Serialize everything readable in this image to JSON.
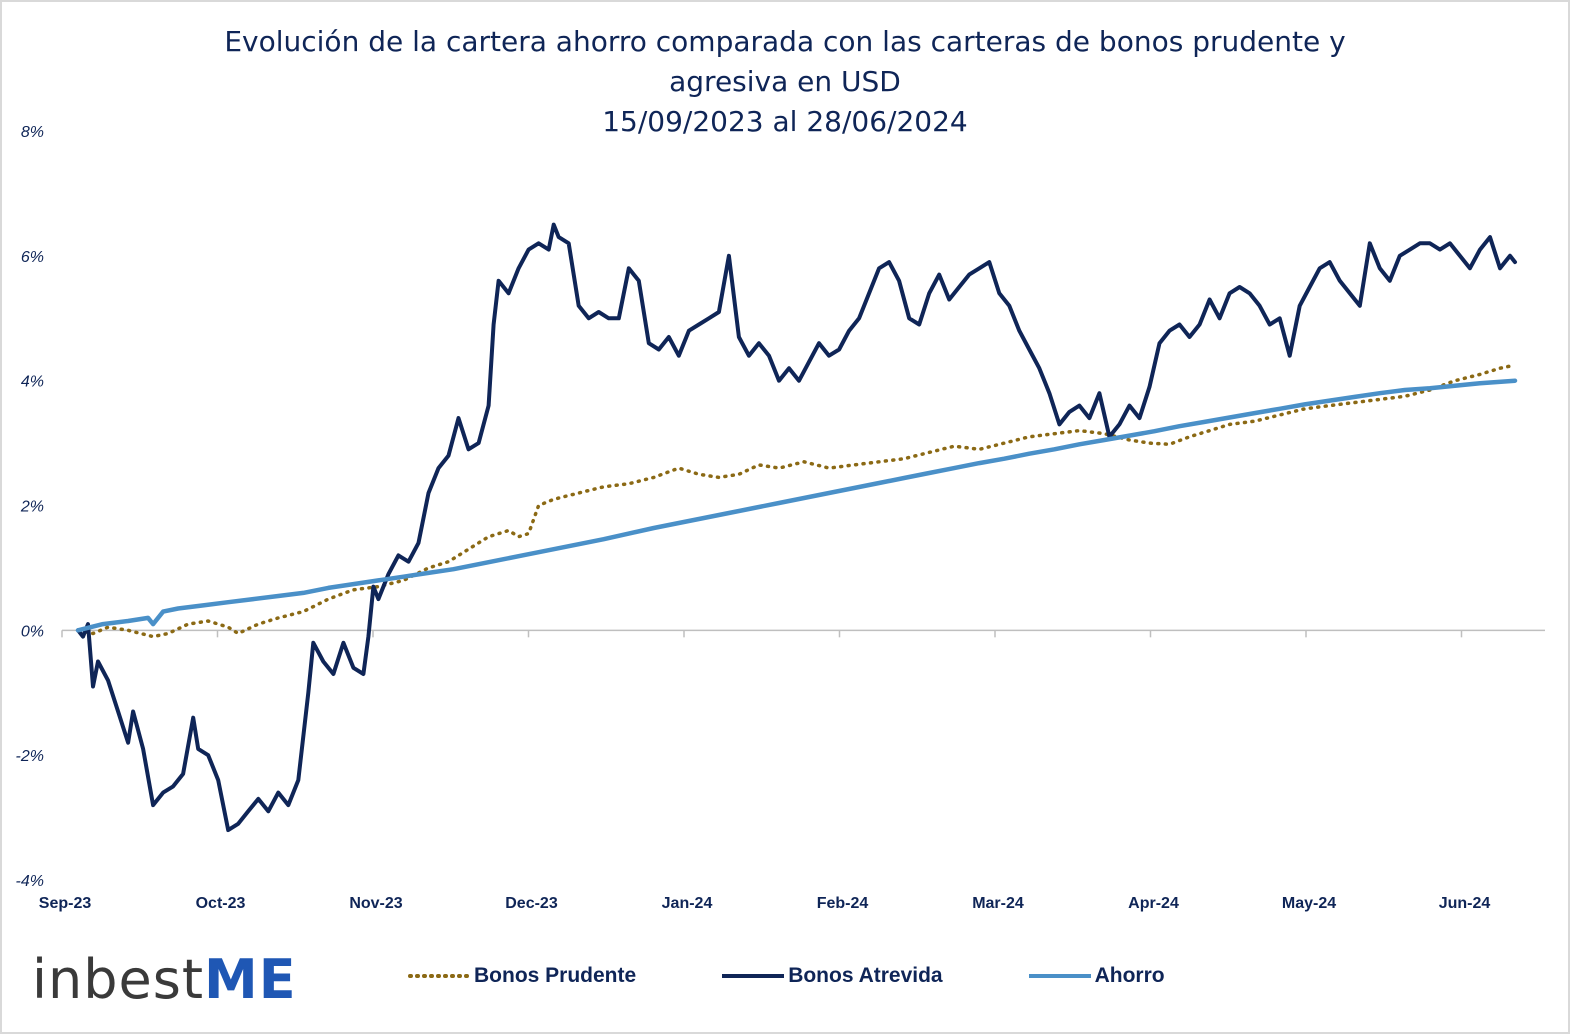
{
  "title_lines": [
    "Evolución de la cartera ahorro comparada con las carteras de bonos prudente y",
    "agresiva en USD",
    "15/09/2023 al 28/06/2024"
  ],
  "logo": {
    "text_main": "inbest",
    "text_accent": "ME"
  },
  "colors": {
    "prudente": "#8b6914",
    "atrevida": "#0f2557",
    "ahorro": "#4a90c8",
    "axis": "#bfbfbf",
    "text": "#0f2557"
  },
  "chart_data": {
    "type": "line",
    "title": "Evolución de la cartera ahorro comparada con las carteras de bonos prudente y agresiva en USD 15/09/2023 al 28/06/2024",
    "xlabel": "",
    "ylabel": "",
    "x_unit": "days since 2023-09-15",
    "x_range": [
      0,
      287
    ],
    "ylim": [
      -4,
      8
    ],
    "y_ticks": [
      8,
      6,
      4,
      2,
      0,
      -2,
      -4
    ],
    "y_tick_labels": [
      "8%",
      "6%",
      "4%",
      "2%",
      "0%",
      "-2%",
      "-4%"
    ],
    "x_tick_labels": [
      "Sep-23",
      "Oct-23",
      "Nov-23",
      "Dec-23",
      "Jan-24",
      "Feb-24",
      "Mar-24",
      "Apr-24",
      "May-24",
      "Jun-24"
    ],
    "grid": false,
    "legend_position": "bottom",
    "series": [
      {
        "name": "Bonos Prudente",
        "style": "dotted",
        "points": [
          [
            0,
            0
          ],
          [
            3,
            -0.05
          ],
          [
            6,
            0.05
          ],
          [
            10,
            0
          ],
          [
            15,
            -0.1
          ],
          [
            18,
            -0.05
          ],
          [
            22,
            0.1
          ],
          [
            26,
            0.15
          ],
          [
            30,
            0.05
          ],
          [
            32,
            -0.05
          ],
          [
            36,
            0.1
          ],
          [
            40,
            0.2
          ],
          [
            45,
            0.3
          ],
          [
            50,
            0.5
          ],
          [
            55,
            0.65
          ],
          [
            60,
            0.7
          ],
          [
            65,
            0.8
          ],
          [
            70,
            1.0
          ],
          [
            74,
            1.1
          ],
          [
            78,
            1.3
          ],
          [
            82,
            1.5
          ],
          [
            86,
            1.6
          ],
          [
            88,
            1.5
          ],
          [
            90,
            1.55
          ],
          [
            92,
            2.0
          ],
          [
            95,
            2.1
          ],
          [
            100,
            2.2
          ],
          [
            105,
            2.3
          ],
          [
            110,
            2.35
          ],
          [
            115,
            2.45
          ],
          [
            120,
            2.6
          ],
          [
            124,
            2.5
          ],
          [
            128,
            2.45
          ],
          [
            132,
            2.5
          ],
          [
            136,
            2.65
          ],
          [
            140,
            2.6
          ],
          [
            145,
            2.7
          ],
          [
            150,
            2.6
          ],
          [
            155,
            2.65
          ],
          [
            160,
            2.7
          ],
          [
            165,
            2.75
          ],
          [
            170,
            2.85
          ],
          [
            175,
            2.95
          ],
          [
            180,
            2.9
          ],
          [
            185,
            3.0
          ],
          [
            190,
            3.1
          ],
          [
            195,
            3.15
          ],
          [
            200,
            3.2
          ],
          [
            205,
            3.15
          ],
          [
            210,
            3.05
          ],
          [
            214,
            3.0
          ],
          [
            218,
            2.98
          ],
          [
            222,
            3.1
          ],
          [
            226,
            3.2
          ],
          [
            230,
            3.3
          ],
          [
            235,
            3.35
          ],
          [
            240,
            3.45
          ],
          [
            245,
            3.55
          ],
          [
            250,
            3.6
          ],
          [
            255,
            3.65
          ],
          [
            260,
            3.7
          ],
          [
            265,
            3.75
          ],
          [
            270,
            3.85
          ],
          [
            275,
            4.0
          ],
          [
            280,
            4.1
          ],
          [
            284,
            4.2
          ],
          [
            287,
            4.25
          ]
        ]
      },
      {
        "name": "Bonos Atrevida",
        "style": "solid",
        "points": [
          [
            0,
            0
          ],
          [
            1,
            -0.1
          ],
          [
            2,
            0.1
          ],
          [
            3,
            -0.9
          ],
          [
            4,
            -0.5
          ],
          [
            6,
            -0.8
          ],
          [
            8,
            -1.3
          ],
          [
            10,
            -1.8
          ],
          [
            11,
            -1.3
          ],
          [
            13,
            -1.9
          ],
          [
            15,
            -2.8
          ],
          [
            17,
            -2.6
          ],
          [
            19,
            -2.5
          ],
          [
            21,
            -2.3
          ],
          [
            23,
            -1.4
          ],
          [
            24,
            -1.9
          ],
          [
            26,
            -2.0
          ],
          [
            28,
            -2.4
          ],
          [
            30,
            -3.2
          ],
          [
            32,
            -3.1
          ],
          [
            34,
            -2.9
          ],
          [
            36,
            -2.7
          ],
          [
            38,
            -2.9
          ],
          [
            40,
            -2.6
          ],
          [
            42,
            -2.8
          ],
          [
            44,
            -2.4
          ],
          [
            46,
            -1.0
          ],
          [
            47,
            -0.2
          ],
          [
            49,
            -0.5
          ],
          [
            51,
            -0.7
          ],
          [
            53,
            -0.2
          ],
          [
            55,
            -0.6
          ],
          [
            57,
            -0.7
          ],
          [
            58,
            -0.1
          ],
          [
            59,
            0.7
          ],
          [
            60,
            0.5
          ],
          [
            62,
            0.9
          ],
          [
            64,
            1.2
          ],
          [
            66,
            1.1
          ],
          [
            68,
            1.4
          ],
          [
            70,
            2.2
          ],
          [
            72,
            2.6
          ],
          [
            74,
            2.8
          ],
          [
            76,
            3.4
          ],
          [
            78,
            2.9
          ],
          [
            80,
            3.0
          ],
          [
            82,
            3.6
          ],
          [
            83,
            4.9
          ],
          [
            84,
            5.6
          ],
          [
            86,
            5.4
          ],
          [
            88,
            5.8
          ],
          [
            90,
            6.1
          ],
          [
            92,
            6.2
          ],
          [
            94,
            6.1
          ],
          [
            95,
            6.5
          ],
          [
            96,
            6.3
          ],
          [
            98,
            6.2
          ],
          [
            100,
            5.2
          ],
          [
            102,
            5.0
          ],
          [
            104,
            5.1
          ],
          [
            106,
            5.0
          ],
          [
            108,
            5.0
          ],
          [
            110,
            5.8
          ],
          [
            112,
            5.6
          ],
          [
            114,
            4.6
          ],
          [
            116,
            4.5
          ],
          [
            118,
            4.7
          ],
          [
            120,
            4.4
          ],
          [
            122,
            4.8
          ],
          [
            124,
            4.9
          ],
          [
            126,
            5.0
          ],
          [
            128,
            5.1
          ],
          [
            130,
            6.0
          ],
          [
            132,
            4.7
          ],
          [
            134,
            4.4
          ],
          [
            136,
            4.6
          ],
          [
            138,
            4.4
          ],
          [
            140,
            4.0
          ],
          [
            142,
            4.2
          ],
          [
            144,
            4.0
          ],
          [
            146,
            4.3
          ],
          [
            148,
            4.6
          ],
          [
            150,
            4.4
          ],
          [
            152,
            4.5
          ],
          [
            154,
            4.8
          ],
          [
            156,
            5.0
          ],
          [
            158,
            5.4
          ],
          [
            160,
            5.8
          ],
          [
            162,
            5.9
          ],
          [
            164,
            5.6
          ],
          [
            166,
            5.0
          ],
          [
            168,
            4.9
          ],
          [
            170,
            5.4
          ],
          [
            172,
            5.7
          ],
          [
            174,
            5.3
          ],
          [
            176,
            5.5
          ],
          [
            178,
            5.7
          ],
          [
            180,
            5.8
          ],
          [
            182,
            5.9
          ],
          [
            184,
            5.4
          ],
          [
            186,
            5.2
          ],
          [
            188,
            4.8
          ],
          [
            190,
            4.5
          ],
          [
            192,
            4.2
          ],
          [
            194,
            3.8
          ],
          [
            196,
            3.3
          ],
          [
            198,
            3.5
          ],
          [
            200,
            3.6
          ],
          [
            202,
            3.4
          ],
          [
            204,
            3.8
          ],
          [
            206,
            3.1
          ],
          [
            208,
            3.3
          ],
          [
            210,
            3.6
          ],
          [
            212,
            3.4
          ],
          [
            214,
            3.9
          ],
          [
            216,
            4.6
          ],
          [
            218,
            4.8
          ],
          [
            220,
            4.9
          ],
          [
            222,
            4.7
          ],
          [
            224,
            4.9
          ],
          [
            226,
            5.3
          ],
          [
            228,
            5.0
          ],
          [
            230,
            5.4
          ],
          [
            232,
            5.5
          ],
          [
            234,
            5.4
          ],
          [
            236,
            5.2
          ],
          [
            238,
            4.9
          ],
          [
            240,
            5.0
          ],
          [
            242,
            4.4
          ],
          [
            244,
            5.2
          ],
          [
            246,
            5.5
          ],
          [
            248,
            5.8
          ],
          [
            250,
            5.9
          ],
          [
            252,
            5.6
          ],
          [
            254,
            5.4
          ],
          [
            256,
            5.2
          ],
          [
            258,
            6.2
          ],
          [
            260,
            5.8
          ],
          [
            262,
            5.6
          ],
          [
            264,
            6.0
          ],
          [
            266,
            6.1
          ],
          [
            268,
            6.2
          ],
          [
            270,
            6.2
          ],
          [
            272,
            6.1
          ],
          [
            274,
            6.2
          ],
          [
            276,
            6.0
          ],
          [
            278,
            5.8
          ],
          [
            280,
            6.1
          ],
          [
            282,
            6.3
          ],
          [
            284,
            5.8
          ],
          [
            286,
            6.0
          ],
          [
            287,
            5.9
          ]
        ]
      },
      {
        "name": "Ahorro",
        "style": "solid",
        "points": [
          [
            0,
            0
          ],
          [
            5,
            0.1
          ],
          [
            10,
            0.15
          ],
          [
            14,
            0.2
          ],
          [
            15,
            0.1
          ],
          [
            17,
            0.3
          ],
          [
            20,
            0.35
          ],
          [
            25,
            0.4
          ],
          [
            30,
            0.45
          ],
          [
            35,
            0.5
          ],
          [
            40,
            0.55
          ],
          [
            45,
            0.6
          ],
          [
            50,
            0.68
          ],
          [
            55,
            0.74
          ],
          [
            60,
            0.8
          ],
          [
            65,
            0.86
          ],
          [
            70,
            0.92
          ],
          [
            75,
            0.98
          ],
          [
            80,
            1.06
          ],
          [
            85,
            1.14
          ],
          [
            90,
            1.22
          ],
          [
            95,
            1.3
          ],
          [
            100,
            1.38
          ],
          [
            105,
            1.46
          ],
          [
            110,
            1.55
          ],
          [
            115,
            1.64
          ],
          [
            120,
            1.72
          ],
          [
            125,
            1.8
          ],
          [
            130,
            1.88
          ],
          [
            135,
            1.96
          ],
          [
            140,
            2.04
          ],
          [
            145,
            2.12
          ],
          [
            150,
            2.2
          ],
          [
            155,
            2.28
          ],
          [
            160,
            2.36
          ],
          [
            165,
            2.44
          ],
          [
            170,
            2.52
          ],
          [
            175,
            2.6
          ],
          [
            180,
            2.68
          ],
          [
            185,
            2.75
          ],
          [
            190,
            2.83
          ],
          [
            195,
            2.9
          ],
          [
            200,
            2.98
          ],
          [
            205,
            3.05
          ],
          [
            210,
            3.12
          ],
          [
            215,
            3.19
          ],
          [
            220,
            3.27
          ],
          [
            225,
            3.34
          ],
          [
            230,
            3.41
          ],
          [
            235,
            3.48
          ],
          [
            240,
            3.55
          ],
          [
            245,
            3.62
          ],
          [
            250,
            3.68
          ],
          [
            255,
            3.74
          ],
          [
            260,
            3.8
          ],
          [
            265,
            3.85
          ],
          [
            270,
            3.88
          ],
          [
            275,
            3.92
          ],
          [
            280,
            3.96
          ],
          [
            287,
            4.0
          ]
        ]
      }
    ]
  }
}
